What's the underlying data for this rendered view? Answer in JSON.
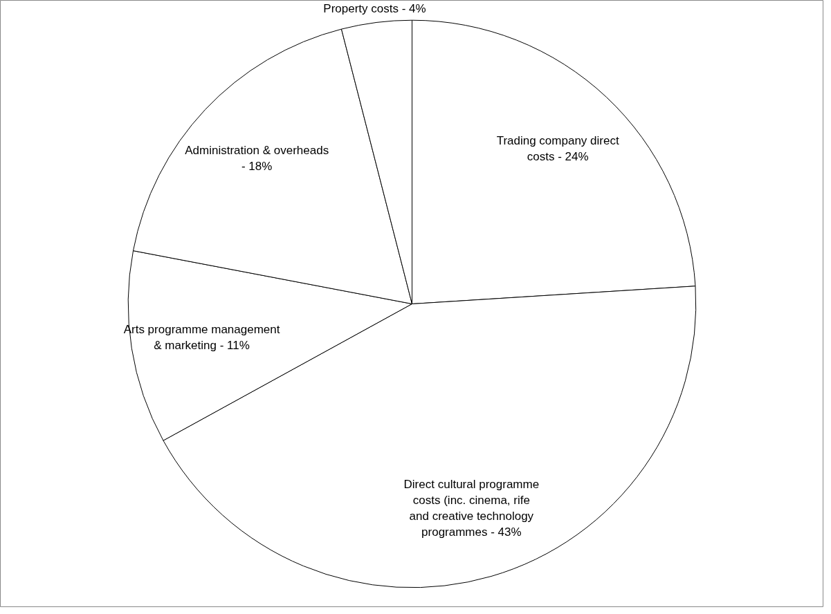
{
  "chart_data": {
    "type": "pie",
    "categories": [
      "Trading company direct costs - 24%",
      "Direct cultural programme costs (inc. cinema, rife and creative technology programmes - 43%",
      "Arts programme management & marketing - 11%",
      "Administration & overheads - 18%",
      "Property costs - 4%"
    ],
    "values": [
      24,
      43,
      11,
      18,
      4
    ],
    "colors": [
      "#ffffff",
      "#ffffff",
      "#ffffff",
      "#ffffff",
      "#ffffff"
    ]
  }
}
